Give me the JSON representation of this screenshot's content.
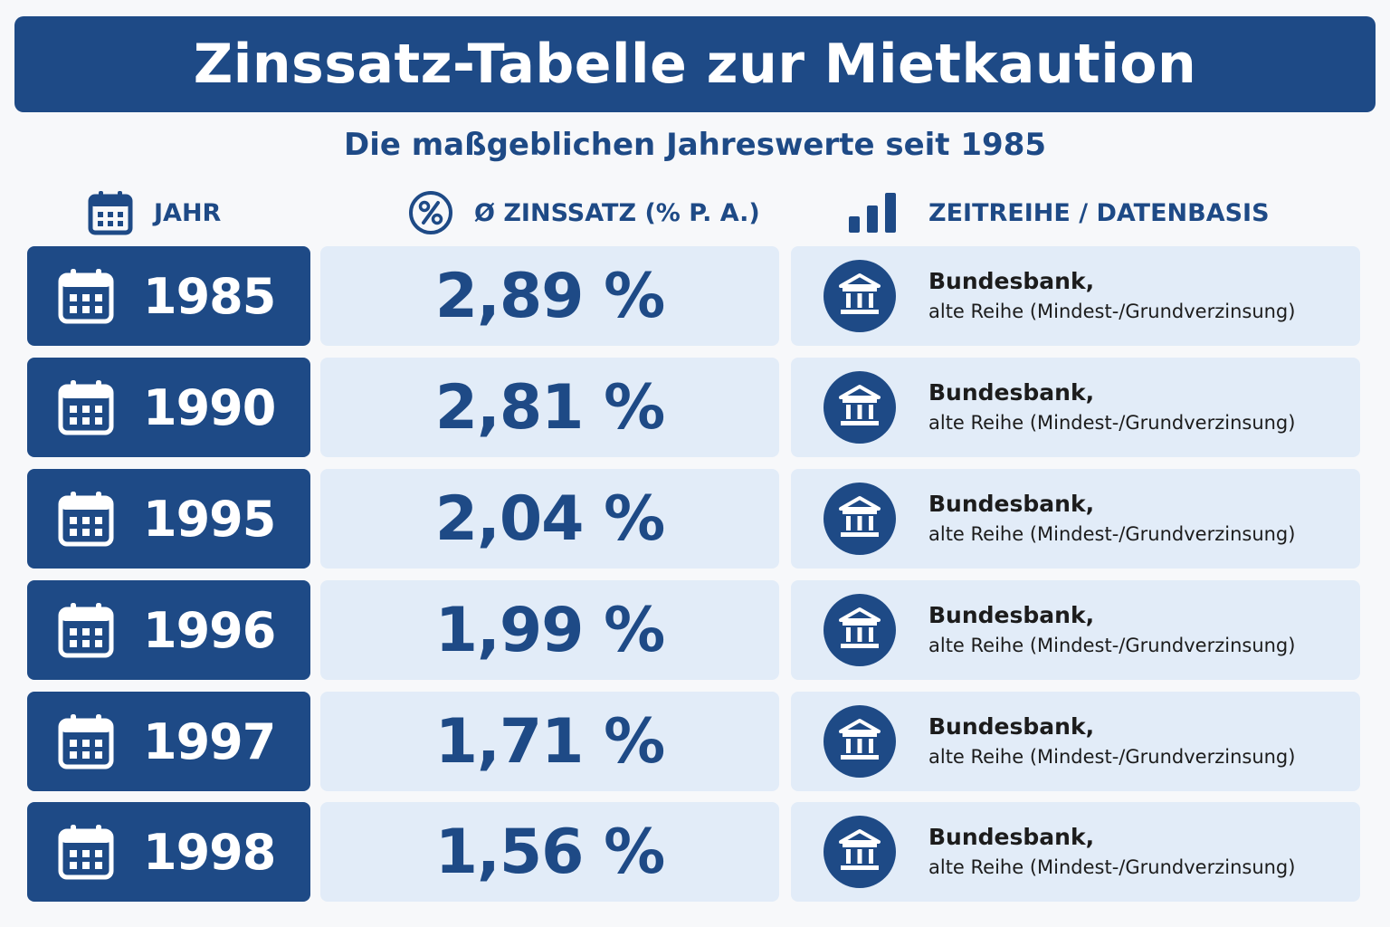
{
  "title": "Zinssatz-Tabelle zur Mietkaution",
  "subtitle": "Die maßgeblichen Jahreswerte seit 1985",
  "headers": {
    "year": "JAHR",
    "rate": "Ø ZINSSATZ (% P. A.)",
    "source": "ZEITREIHE / DATENBASIS"
  },
  "icons": {
    "header_year": "calendar-icon",
    "header_rate": "percent-circle-icon",
    "header_source": "bar-chart-icon",
    "row_year": "calendar-icon",
    "row_source": "bank-building-icon"
  },
  "colors": {
    "primary": "#1e4a86",
    "cell_background": "#e2ecf8",
    "page_background": "#f7f8fa"
  },
  "rows": [
    {
      "year": "1985",
      "rate": "2,89 %",
      "source_line1": "Bundesbank,",
      "source_line2": "alte Reihe (Mindest-/Grundverzinsung)"
    },
    {
      "year": "1990",
      "rate": "2,81 %",
      "source_line1": "Bundesbank,",
      "source_line2": "alte Reihe (Mindest-/Grundverzinsung)"
    },
    {
      "year": "1995",
      "rate": "2,04 %",
      "source_line1": "Bundesbank,",
      "source_line2": "alte Reihe (Mindest-/Grundverzinsung)"
    },
    {
      "year": "1996",
      "rate": "1,99 %",
      "source_line1": "Bundesbank,",
      "source_line2": "alte Reihe (Mindest-/Grundverzinsung)"
    },
    {
      "year": "1997",
      "rate": "1,71 %",
      "source_line1": "Bundesbank,",
      "source_line2": "alte Reihe (Mindest-/Grundverzinsung)"
    },
    {
      "year": "1998",
      "rate": "1,56 %",
      "source_line1": "Bundesbank,",
      "source_line2": "alte Reihe (Mindest-/Grundverzinsung)"
    }
  ]
}
